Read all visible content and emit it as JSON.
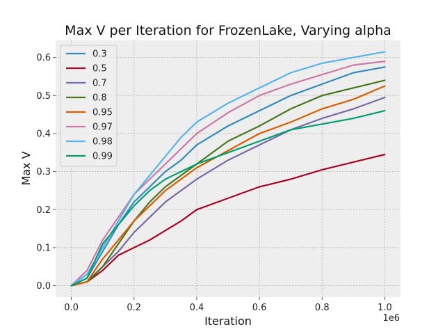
{
  "chart_data": {
    "type": "line",
    "title": "Max V per Iteration for FrozenLake, Varying alpha",
    "xlabel": "Iteration",
    "ylabel": "Max V",
    "x_offset_label": "1e6",
    "xlim": [
      -0.05,
      1.05
    ],
    "ylim": [
      -0.03,
      0.645
    ],
    "x_ticks": [
      0.0,
      0.2,
      0.4,
      0.6,
      0.8,
      1.0
    ],
    "x_tick_labels": [
      "0.0",
      "0.2",
      "0.4",
      "0.6",
      "0.8",
      "1.0"
    ],
    "y_ticks": [
      0.0,
      0.1,
      0.2,
      0.3,
      0.4,
      0.5,
      0.6
    ],
    "y_tick_labels": [
      "0.0",
      "0.1",
      "0.2",
      "0.3",
      "0.4",
      "0.5",
      "0.6"
    ],
    "grid": true,
    "legend_position": "top-left",
    "x": [
      0.0,
      0.05,
      0.1,
      0.15,
      0.2,
      0.25,
      0.3,
      0.35,
      0.4,
      0.5,
      0.6,
      0.7,
      0.8,
      0.9,
      1.0
    ],
    "series": [
      {
        "name": "0.3",
        "color": "#348abd",
        "values": [
          0.0,
          0.02,
          0.09,
          0.16,
          0.22,
          0.26,
          0.3,
          0.33,
          0.37,
          0.42,
          0.46,
          0.5,
          0.53,
          0.56,
          0.575
        ]
      },
      {
        "name": "0.5",
        "color": "#a60628",
        "values": [
          0.0,
          0.01,
          0.04,
          0.08,
          0.1,
          0.12,
          0.145,
          0.17,
          0.2,
          0.23,
          0.26,
          0.28,
          0.305,
          0.325,
          0.345
        ]
      },
      {
        "name": "0.7",
        "color": "#7a68a6",
        "values": [
          0.0,
          0.01,
          0.05,
          0.09,
          0.14,
          0.18,
          0.22,
          0.25,
          0.28,
          0.33,
          0.37,
          0.41,
          0.44,
          0.465,
          0.495
        ]
      },
      {
        "name": "0.8",
        "color": "#467821",
        "values": [
          0.0,
          0.01,
          0.05,
          0.11,
          0.17,
          0.22,
          0.26,
          0.29,
          0.32,
          0.38,
          0.42,
          0.465,
          0.5,
          0.52,
          0.54
        ]
      },
      {
        "name": "0.95",
        "color": "#d55e00",
        "values": [
          0.0,
          0.01,
          0.07,
          0.12,
          0.17,
          0.21,
          0.25,
          0.28,
          0.31,
          0.355,
          0.4,
          0.43,
          0.465,
          0.49,
          0.525
        ]
      },
      {
        "name": "0.97",
        "color": "#cc79a7",
        "values": [
          0.0,
          0.04,
          0.12,
          0.18,
          0.24,
          0.28,
          0.32,
          0.36,
          0.4,
          0.455,
          0.5,
          0.53,
          0.555,
          0.58,
          0.59
        ]
      },
      {
        "name": "0.98",
        "color": "#56b4e9",
        "values": [
          0.0,
          0.03,
          0.1,
          0.17,
          0.24,
          0.29,
          0.34,
          0.39,
          0.43,
          0.48,
          0.52,
          0.56,
          0.585,
          0.6,
          0.615
        ]
      },
      {
        "name": "0.99",
        "color": "#009e73",
        "values": [
          0.0,
          0.02,
          0.11,
          0.16,
          0.21,
          0.25,
          0.28,
          0.3,
          0.32,
          0.35,
          0.38,
          0.41,
          0.425,
          0.44,
          0.46
        ]
      }
    ]
  }
}
